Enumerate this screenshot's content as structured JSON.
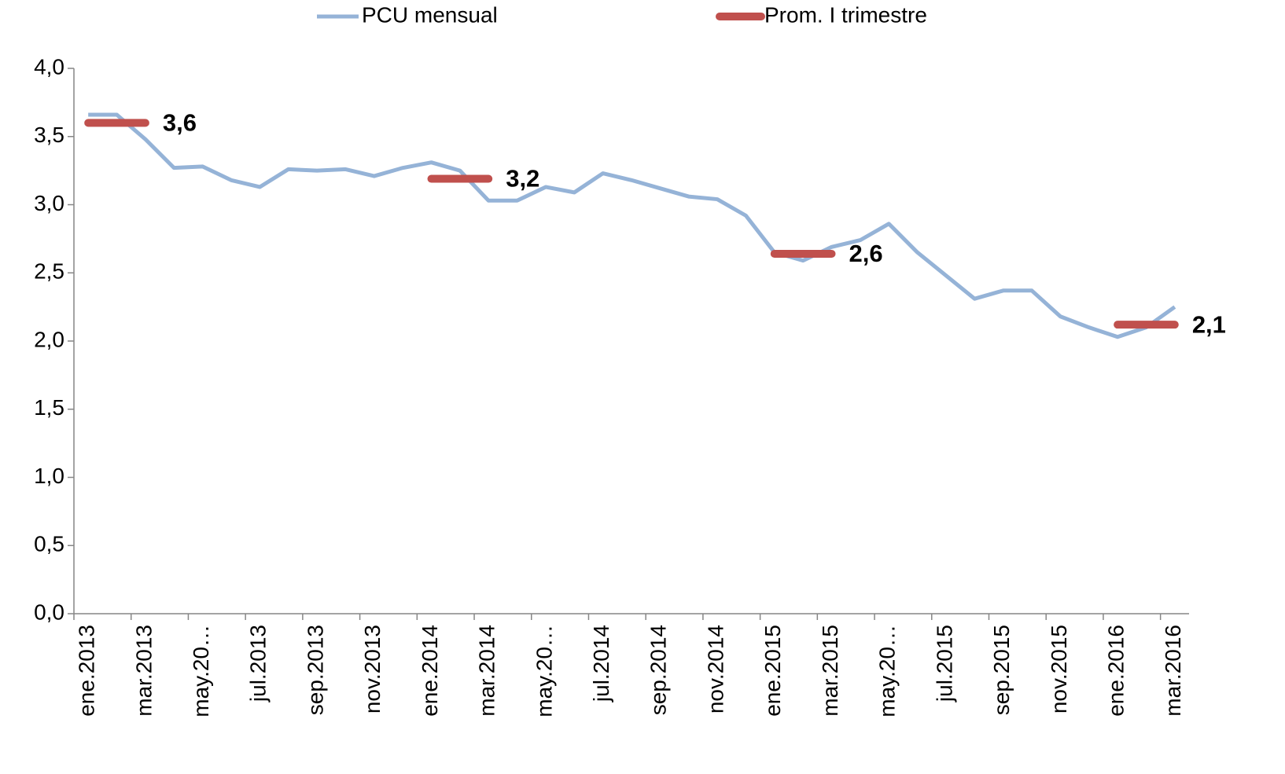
{
  "chart_data": {
    "type": "line",
    "categories": [
      "ene.2013",
      null,
      "mar.2013",
      null,
      "may.20…",
      null,
      "jul.2013",
      null,
      "sep.2013",
      null,
      "nov.2013",
      null,
      "ene.2014",
      null,
      "mar.2014",
      null,
      "may.20…",
      null,
      "jul.2014",
      null,
      "sep.2014",
      null,
      "nov.2014",
      null,
      "ene.2015",
      null,
      "mar.2015",
      null,
      "may.20…",
      null,
      "jul.2015",
      null,
      "sep.2015",
      null,
      "nov.2015",
      null,
      "ene.2016",
      null,
      "mar.2016"
    ],
    "series": [
      {
        "name": "PCU mensual",
        "color": "#95b3d7",
        "values": [
          3.66,
          3.66,
          3.48,
          3.27,
          3.28,
          3.18,
          3.13,
          3.26,
          3.25,
          3.26,
          3.21,
          3.27,
          3.31,
          3.25,
          3.03,
          3.03,
          3.13,
          3.09,
          3.23,
          3.18,
          3.12,
          3.06,
          3.04,
          2.92,
          2.65,
          2.59,
          2.69,
          2.74,
          2.86,
          2.65,
          2.48,
          2.31,
          2.37,
          2.37,
          2.18,
          2.1,
          2.03,
          2.1,
          2.25
        ]
      },
      {
        "name": "Prom. I trimestre",
        "color": "#c0504d",
        "values": [
          3.6,
          3.6,
          3.6,
          null,
          null,
          null,
          null,
          null,
          null,
          null,
          null,
          null,
          3.19,
          3.19,
          3.19,
          null,
          null,
          null,
          null,
          null,
          null,
          null,
          null,
          null,
          2.64,
          2.64,
          2.64,
          null,
          null,
          null,
          null,
          null,
          null,
          null,
          null,
          null,
          2.12,
          2.12,
          2.12
        ],
        "value_labels": [
          null,
          null,
          "3,6",
          null,
          null,
          null,
          null,
          null,
          null,
          null,
          null,
          null,
          null,
          null,
          "3,2",
          null,
          null,
          null,
          null,
          null,
          null,
          null,
          null,
          null,
          null,
          null,
          "2,6",
          null,
          null,
          null,
          null,
          null,
          null,
          null,
          null,
          null,
          null,
          null,
          "2,1"
        ]
      }
    ],
    "ylim": [
      0,
      4
    ],
    "yticks": [
      {
        "value": 0,
        "label": "0,0"
      },
      {
        "value": 0.5,
        "label": "0,5"
      },
      {
        "value": 1,
        "label": "1,0"
      },
      {
        "value": 1.5,
        "label": "1,5"
      },
      {
        "value": 2,
        "label": "2,0"
      },
      {
        "value": 2.5,
        "label": "2,5"
      },
      {
        "value": 3,
        "label": "3,0"
      },
      {
        "value": 3.5,
        "label": "3,5"
      },
      {
        "value": 4,
        "label": "4,0"
      }
    ],
    "grid": false,
    "legend": "top"
  }
}
